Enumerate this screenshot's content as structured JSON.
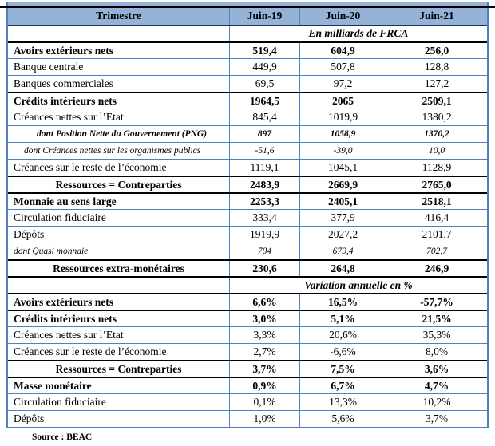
{
  "header": {
    "columns": [
      "Trimestre",
      "Juin-19",
      "Juin-20",
      "Juin-21"
    ]
  },
  "sections": {
    "units_title": "En milliards de FRCA",
    "variation_title": "Variation annuelle en %"
  },
  "rows": [
    {
      "label": "Avoirs extérieurs nets",
      "values": [
        "519,4",
        "604,9",
        "256,0"
      ]
    },
    {
      "label": "Banque centrale",
      "values": [
        "449,9",
        "507,8",
        "128,8"
      ]
    },
    {
      "label": "Banques commerciales",
      "values": [
        "69,5",
        "97,2",
        "127,2"
      ]
    },
    {
      "label": "Crédits intérieurs nets",
      "values": [
        "1964,5",
        "2065",
        "2509,1"
      ]
    },
    {
      "label": "Créances nettes sur l’Etat",
      "values": [
        "845,4",
        "1019,9",
        "1380,2"
      ]
    },
    {
      "label": "dont Position Nette du Gouvernement (PNG)",
      "values": [
        "897",
        "1058,9",
        "1370,2"
      ]
    },
    {
      "label": "dont Créances nettes sur les organismes publics",
      "values": [
        "-51,6",
        "-39,0",
        "10,0"
      ]
    },
    {
      "label": "Créances sur le reste de l’économie",
      "values": [
        "1119,1",
        "1045,1",
        "1128,9"
      ]
    },
    {
      "label": "Ressources = Contreparties",
      "values": [
        "2483,9",
        "2669,9",
        "2765,0"
      ]
    },
    {
      "label": "Monnaie au sens large",
      "values": [
        "2253,3",
        "2405,1",
        "2518,1"
      ]
    },
    {
      "label": "Circulation fiduciaire",
      "values": [
        "333,4",
        "377,9",
        "416,4"
      ]
    },
    {
      "label": "Dépôts",
      "values": [
        "1919,9",
        "2027,2",
        "2101,7"
      ]
    },
    {
      "label": "dont Quasi monnaie",
      "values": [
        "704",
        "679,4",
        "702,7"
      ]
    },
    {
      "label": "Ressources extra-monétaires",
      "values": [
        "230,6",
        "264,8",
        "246,9"
      ]
    },
    {
      "label": "Avoirs extérieurs nets",
      "values": [
        "6,6%",
        "16,5%",
        "-57,7%"
      ]
    },
    {
      "label": "Crédits intérieurs nets",
      "values": [
        "3,0%",
        "5,1%",
        "21,5%"
      ]
    },
    {
      "label": "Créances nettes sur l’Etat",
      "values": [
        "3,3%",
        "20,6%",
        "35,3%"
      ]
    },
    {
      "label": "Créances sur le reste de l’économie",
      "values": [
        "2,7%",
        "-6,6%",
        "8,0%"
      ]
    },
    {
      "label": "Ressources = Contreparties",
      "values": [
        "3,7%",
        "7,5%",
        "3,6%"
      ]
    },
    {
      "label": "Masse monétaire",
      "values": [
        "0,9%",
        "6,7%",
        "4,7%"
      ]
    },
    {
      "label": "Circulation fiduciaire",
      "values": [
        "0,1%",
        "13,3%",
        "10,2%"
      ]
    },
    {
      "label": "Dépôts",
      "values": [
        "1,0%",
        "5,6%",
        "3,7%"
      ]
    }
  ],
  "footer": {
    "source": "Source : BEAC"
  },
  "colors": {
    "header_bg": "#95b3d7",
    "thin_border": "#4f81bd",
    "thick_border": "#000000"
  }
}
